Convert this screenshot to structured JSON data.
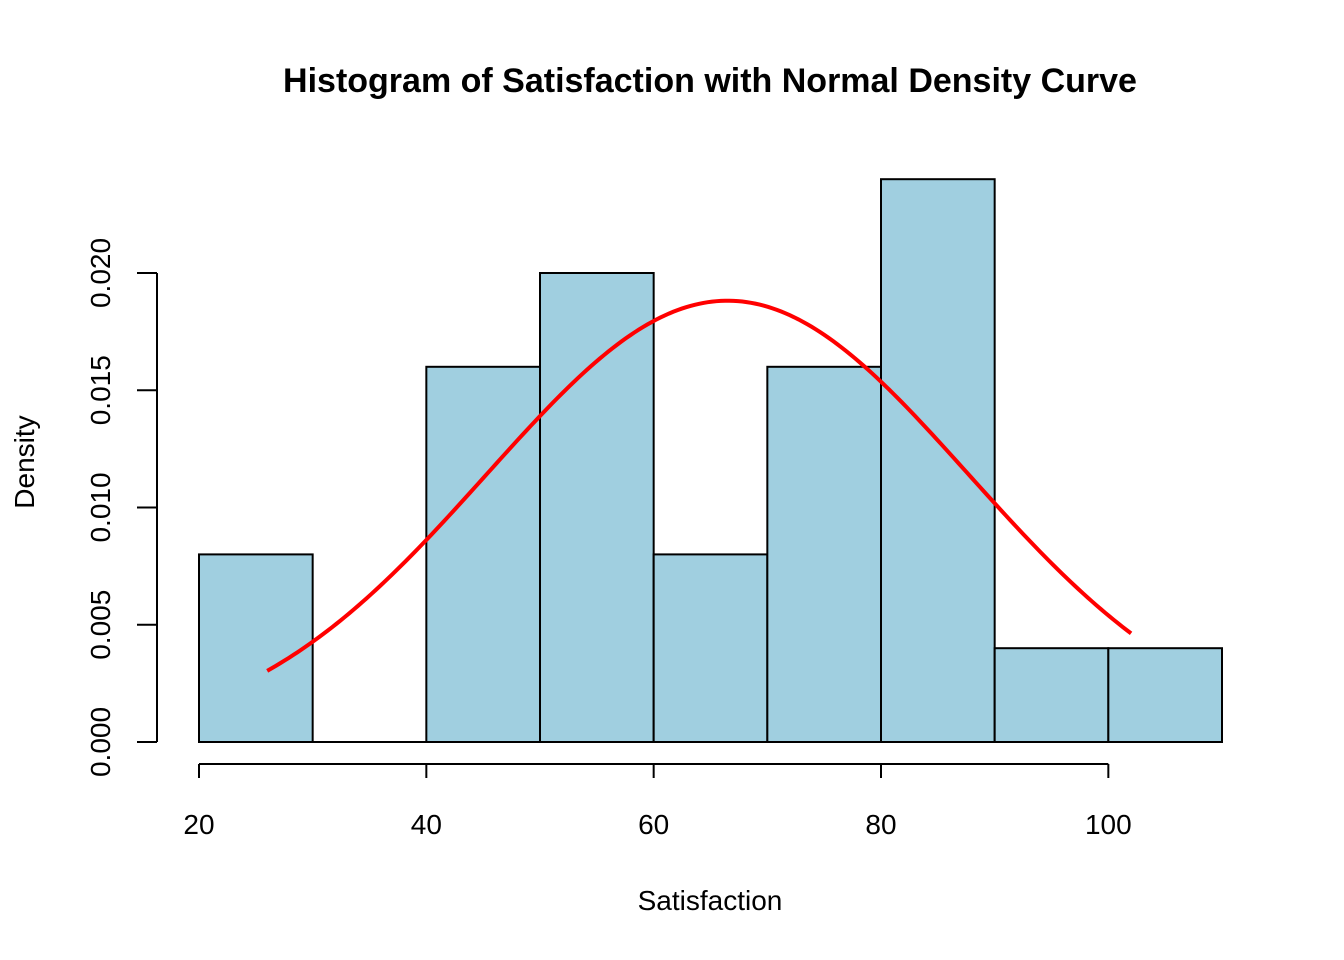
{
  "chart_data": {
    "type": "bar",
    "subtype": "histogram",
    "title": "Histogram of Satisfaction with Normal Density Curve",
    "xlabel": "Satisfaction",
    "ylabel": "Density",
    "bins": [
      {
        "from": 20,
        "to": 30,
        "density": 0.008
      },
      {
        "from": 30,
        "to": 40,
        "density": 0.0
      },
      {
        "from": 40,
        "to": 50,
        "density": 0.016
      },
      {
        "from": 50,
        "to": 60,
        "density": 0.02
      },
      {
        "from": 60,
        "to": 70,
        "density": 0.008
      },
      {
        "from": 70,
        "to": 80,
        "density": 0.016
      },
      {
        "from": 80,
        "to": 90,
        "density": 0.024
      },
      {
        "from": 90,
        "to": 100,
        "density": 0.004
      },
      {
        "from": 100,
        "to": 110,
        "density": 0.004
      }
    ],
    "xticks": [
      20,
      40,
      60,
      80,
      100
    ],
    "yticks": [
      "0.000",
      "0.005",
      "0.010",
      "0.015",
      "0.020"
    ],
    "xlim": [
      20,
      110
    ],
    "ylim": [
      0,
      0.024
    ],
    "grid": false,
    "colors": {
      "bar_fill": "#a0cfe0",
      "bar_border": "#000000",
      "curve": "#ff0000"
    },
    "normal_curve": {
      "mean": 66.5,
      "sd": 21.2,
      "x_from": 26,
      "x_to": 102
    }
  }
}
